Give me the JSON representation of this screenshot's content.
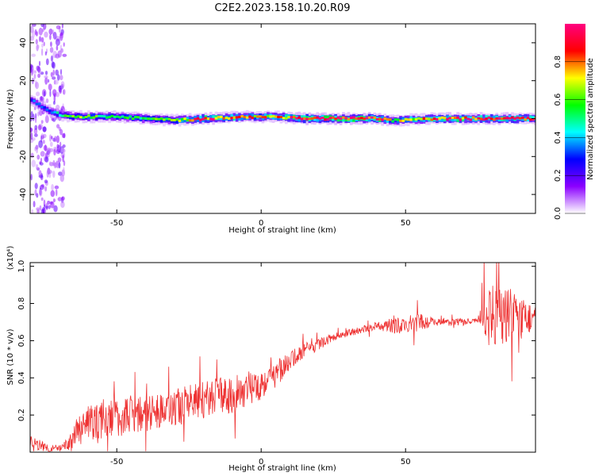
{
  "title": "C2E2.2023.158.10.20.R09",
  "chart_data": [
    {
      "type": "heatmap",
      "xlabel": "Height of straight line (km)",
      "ylabel": "Frequency (Hz)",
      "xlim": [
        -80,
        95
      ],
      "ylim": [
        -50,
        50
      ],
      "xticks": [
        -50,
        0,
        50
      ],
      "yticks": [
        -40,
        -20,
        0,
        20,
        40
      ],
      "colorbar": {
        "label": "Normalized spectral amplitude",
        "range": [
          0,
          1
        ],
        "ticks": [
          "0.0",
          "0.2",
          "0.4",
          "0.6",
          "0.8"
        ],
        "colormap": [
          "#ffffff",
          "#8b00ff",
          "#0000ff",
          "#00ffff",
          "#00ff00",
          "#ffff00",
          "#ff0000",
          "#ff0080"
        ]
      },
      "ridge": [
        {
          "x": -80,
          "freq": 10,
          "amp": 0.3
        },
        {
          "x": -75,
          "freq": 5,
          "amp": 0.35
        },
        {
          "x": -70,
          "freq": 2,
          "amp": 0.45
        },
        {
          "x": -65,
          "freq": 1,
          "amp": 0.6
        },
        {
          "x": -50,
          "freq": 1,
          "amp": 0.55
        },
        {
          "x": -40,
          "freq": 0,
          "amp": 0.55
        },
        {
          "x": -30,
          "freq": -1,
          "amp": 0.6
        },
        {
          "x": -20,
          "freq": 0,
          "amp": 0.9
        },
        {
          "x": -5,
          "freq": 1,
          "amp": 0.75
        },
        {
          "x": 5,
          "freq": 1,
          "amp": 0.75
        },
        {
          "x": 15,
          "freq": 0,
          "amp": 0.95
        },
        {
          "x": 40,
          "freq": 0,
          "amp": 0.95
        },
        {
          "x": 45,
          "freq": -1,
          "amp": 0.6
        },
        {
          "x": 60,
          "freq": 0,
          "amp": 0.85
        },
        {
          "x": 80,
          "freq": 0,
          "amp": 0.85
        },
        {
          "x": 95,
          "freq": 0,
          "amp": 0.85
        }
      ],
      "scatter_band": {
        "x_range": [
          -80,
          -68
        ],
        "freq_range": [
          -50,
          50
        ]
      }
    },
    {
      "type": "line",
      "color": "#ee3333",
      "xlabel": "Height of straight line (km)",
      "ylabel": "SNR (10 * v/v)",
      "yscale_label": "(x10⁴)",
      "xlim": [
        -80,
        95
      ],
      "ylim": [
        0,
        1.02
      ],
      "xticks": [
        -50,
        0,
        50
      ],
      "yticks": [
        "0.2",
        "0.4",
        "0.6",
        "0.8",
        "1.0"
      ],
      "series": [
        {
          "x": [
            -80,
            -77,
            -73,
            -69,
            -66,
            -64,
            -60,
            -55,
            -50,
            -45,
            -40,
            -35,
            -30,
            -25,
            -20,
            -15,
            -10,
            -5,
            0,
            5,
            10,
            15,
            20,
            25,
            30,
            35,
            40,
            45,
            50,
            55,
            60,
            65,
            70,
            75,
            78,
            82,
            86,
            90,
            95
          ],
          "y": [
            0.06,
            0.04,
            0.02,
            0.02,
            0.05,
            0.1,
            0.15,
            0.18,
            0.19,
            0.2,
            0.21,
            0.22,
            0.24,
            0.26,
            0.28,
            0.3,
            0.31,
            0.34,
            0.37,
            0.42,
            0.49,
            0.55,
            0.58,
            0.62,
            0.64,
            0.66,
            0.68,
            0.68,
            0.68,
            0.7,
            0.7,
            0.7,
            0.7,
            0.71,
            0.75,
            0.72,
            0.74,
            0.73,
            0.72
          ],
          "noise": [
            0.03,
            0.03,
            0.02,
            0.02,
            0.05,
            0.08,
            0.1,
            0.11,
            0.11,
            0.11,
            0.1,
            0.1,
            0.1,
            0.1,
            0.1,
            0.1,
            0.1,
            0.09,
            0.09,
            0.07,
            0.05,
            0.04,
            0.03,
            0.02,
            0.02,
            0.02,
            0.02,
            0.04,
            0.05,
            0.05,
            0.02,
            0.02,
            0.02,
            0.01,
            0.18,
            0.17,
            0.15,
            0.1,
            0.08
          ]
        }
      ]
    }
  ]
}
